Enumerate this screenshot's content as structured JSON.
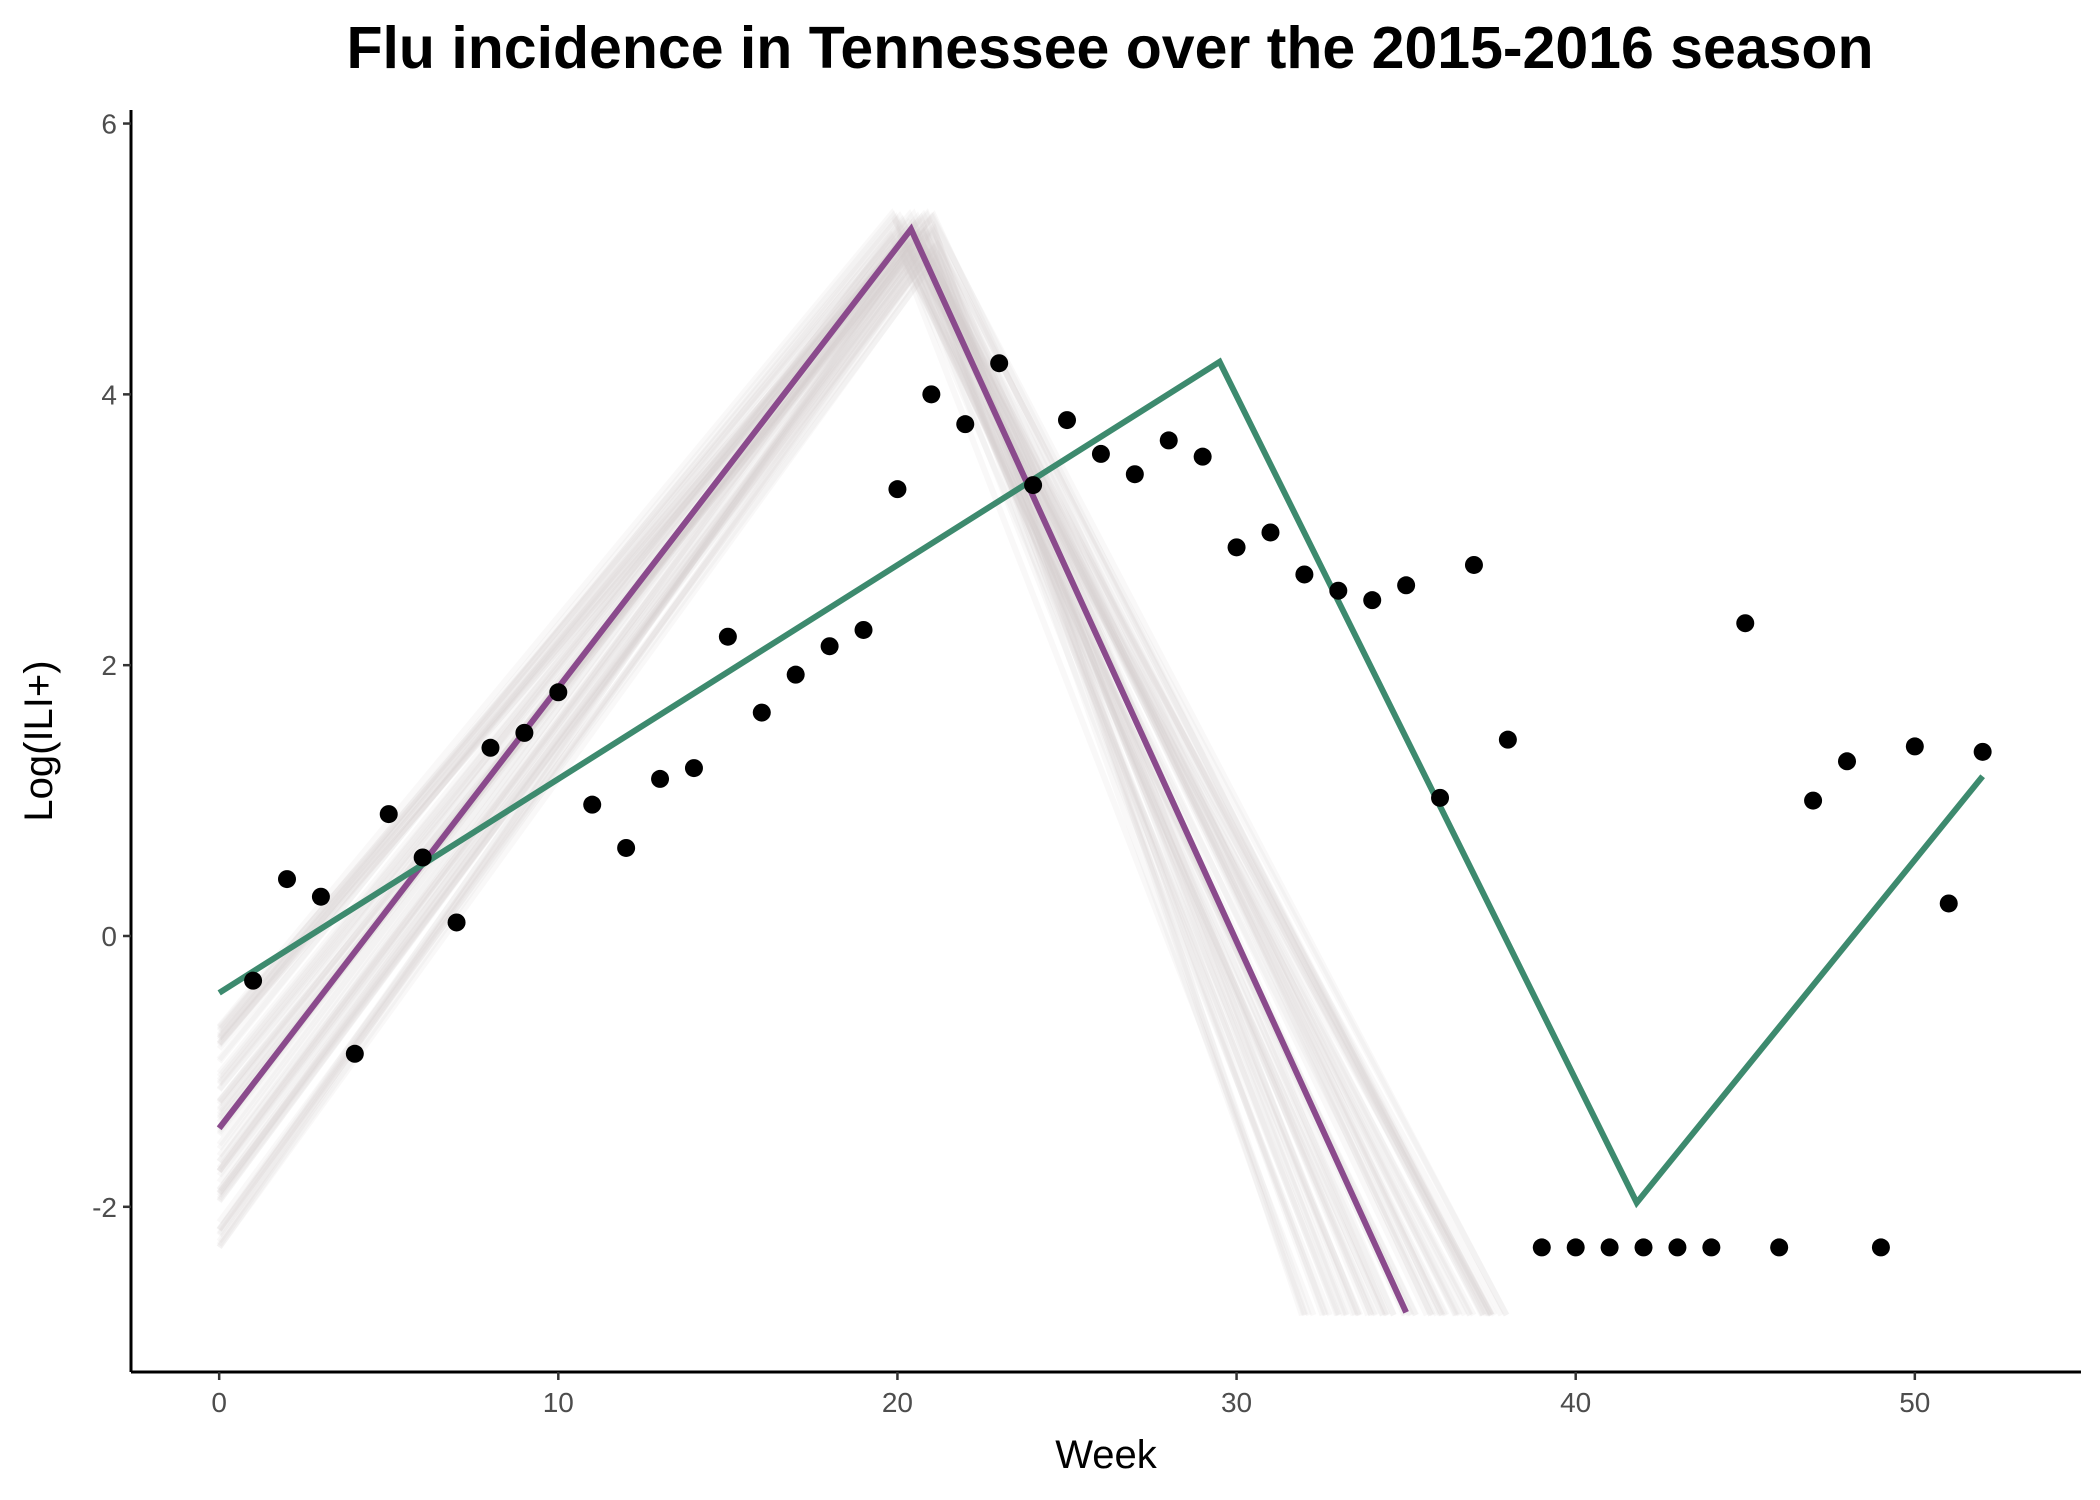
{
  "chart_data": {
    "type": "scatter",
    "title": "Flu incidence in Tennessee over the 2015-2016 season",
    "xlabel": "Week",
    "ylabel": "Log(ILI+)",
    "xlim": [
      -2.6,
      54.9
    ],
    "ylim": [
      -3.22,
      6.1
    ],
    "x_ticks": [
      0,
      10,
      20,
      30,
      40,
      50
    ],
    "y_ticks": [
      -2,
      0,
      2,
      4,
      6
    ],
    "grid": false,
    "legend": "none",
    "colors": {
      "points": "#000000",
      "purple_fit": "#8a4a8c",
      "green_fit": "#3d8a6e",
      "samples": "#d8cfcf"
    },
    "points": {
      "x": [
        1,
        2,
        3,
        4,
        5,
        6,
        7,
        8,
        9,
        10,
        11,
        12,
        13,
        14,
        15,
        16,
        17,
        18,
        19,
        20,
        21,
        22,
        23,
        24,
        25,
        26,
        27,
        28,
        29,
        30,
        31,
        32,
        33,
        34,
        35,
        36,
        37,
        38,
        39,
        40,
        41,
        42,
        43,
        44,
        45,
        46,
        47,
        48,
        49,
        50,
        51,
        52
      ],
      "y": [
        -0.33,
        0.42,
        0.29,
        -0.87,
        0.9,
        0.58,
        0.1,
        1.39,
        1.5,
        1.8,
        0.97,
        0.65,
        1.16,
        1.24,
        2.21,
        1.65,
        1.93,
        2.14,
        2.26,
        3.3,
        4.0,
        3.78,
        4.23,
        3.33,
        3.81,
        3.56,
        3.41,
        3.66,
        3.54,
        2.87,
        2.98,
        2.67,
        2.55,
        2.48,
        2.59,
        1.02,
        2.74,
        1.45,
        -2.3,
        -2.3,
        -2.3,
        -2.3,
        -2.3,
        -2.3,
        2.31,
        -2.3,
        1.0,
        1.29,
        -2.3,
        1.4,
        0.24,
        1.36
      ]
    },
    "series": [
      {
        "x": [
          0,
          20.4,
          35.0
        ],
        "y": [
          -1.42,
          5.22,
          -2.78
        ]
      },
      {
        "x": [
          0,
          29.5,
          41.8,
          52.0
        ],
        "y": [
          -0.42,
          4.24,
          -1.97,
          1.18
        ]
      }
    ],
    "sample_band": {
      "start_x": [
        0,
        0
      ],
      "start_y": [
        -2.3,
        -0.6
      ],
      "peak_x": [
        19.8,
        21.2
      ],
      "peak_y": [
        4.8,
        5.35
      ],
      "end_x": [
        31.8,
        38.0
      ],
      "end_y": -2.8,
      "count": 70
    }
  }
}
